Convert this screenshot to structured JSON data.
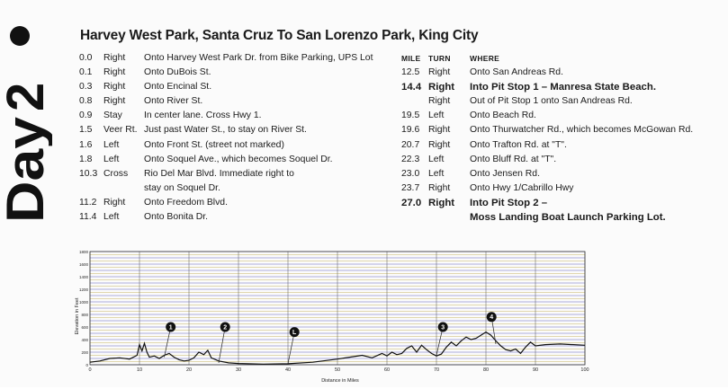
{
  "day": {
    "label": "Day",
    "number": "2"
  },
  "route_title": "Harvey West Park, Santa Cruz To San Lorenzo Park, King City",
  "headers": {
    "mile": "MILE",
    "turn": "TURN",
    "where": "WHERE"
  },
  "left_cues": [
    {
      "mile": "0.0",
      "turn": "Right",
      "where": "Onto Harvey West Park Dr. from Bike Parking, UPS Lot"
    },
    {
      "mile": "0.1",
      "turn": "Right",
      "where": "Onto DuBois St."
    },
    {
      "mile": "0.3",
      "turn": "Right",
      "where": "Onto Encinal St."
    },
    {
      "mile": "0.8",
      "turn": "Right",
      "where": "Onto River St."
    },
    {
      "mile": "0.9",
      "turn": "Stay",
      "where": "In center lane. Cross Hwy 1."
    },
    {
      "mile": "1.5",
      "turn": "Veer Rt.",
      "where": "Just past Water St., to stay on River St."
    },
    {
      "mile": "1.6",
      "turn": "Left",
      "where": "Onto Front St. (street not marked)"
    },
    {
      "mile": "1.8",
      "turn": "Left",
      "where": "Onto Soquel Ave., which becomes Soquel Dr."
    },
    {
      "mile": "10.3",
      "turn": "Cross",
      "where": "Rio Del Mar Blvd. Immediate right to"
    },
    {
      "mile": "",
      "turn": "",
      "where": "stay on Soquel Dr."
    },
    {
      "mile": "11.2",
      "turn": "Right",
      "where": "Onto Freedom Blvd."
    },
    {
      "mile": "11.4",
      "turn": "Left",
      "where": "Onto Bonita Dr."
    }
  ],
  "right_cues": [
    {
      "mile": "12.5",
      "turn": "Right",
      "where": "Onto San Andreas Rd.",
      "bold": false
    },
    {
      "mile": "14.4",
      "turn": "Right",
      "where": "Into Pit Stop 1 – Manresa State Beach.",
      "bold": true
    },
    {
      "mile": "",
      "turn": "Right",
      "where": "Out of Pit Stop 1 onto San Andreas Rd.",
      "bold": false
    },
    {
      "mile": "19.5",
      "turn": "Left",
      "where": "Onto Beach Rd.",
      "bold": false
    },
    {
      "mile": "19.6",
      "turn": "Right",
      "where": "Onto Thurwatcher Rd., which becomes McGowan Rd.",
      "bold": false
    },
    {
      "mile": "20.7",
      "turn": "Right",
      "where": "Onto Trafton Rd. at \"T\".",
      "bold": false
    },
    {
      "mile": "22.3",
      "turn": "Left",
      "where": "Onto Bluff Rd. at \"T\".",
      "bold": false
    },
    {
      "mile": "23.0",
      "turn": "Left",
      "where": "Onto Jensen Rd.",
      "bold": false
    },
    {
      "mile": "23.7",
      "turn": "Right",
      "where": "Onto Hwy 1/Cabrillo Hwy",
      "bold": false
    },
    {
      "mile": "27.0",
      "turn": "Right",
      "where": "Into Pit Stop 2 –",
      "bold": true
    },
    {
      "mile": "",
      "turn": "",
      "where": "Moss Landing Boat Launch Parking Lot.",
      "bold": true
    }
  ],
  "chart_data": {
    "type": "area",
    "xlabel": "Distance in Miles",
    "ylabel": "Elevation in Feet",
    "xlim": [
      0,
      100
    ],
    "ylim": [
      0,
      1800
    ],
    "x_ticks": [
      0,
      10,
      20,
      30,
      40,
      50,
      60,
      70,
      80,
      90,
      100
    ],
    "y_ticks": [
      0,
      200,
      400,
      600,
      800,
      1000,
      1200,
      1400,
      1600,
      1800
    ],
    "grid": true,
    "line_color": "#111111",
    "grid_colors": [
      "#3a3ab0",
      "#b7a23a"
    ],
    "series": [
      {
        "x": [
          0,
          2,
          4,
          6,
          8,
          9.5,
          10,
          10.5,
          11,
          11.5,
          12,
          13,
          14,
          15,
          16,
          17,
          18,
          19,
          20,
          21,
          22,
          23,
          23.8,
          24.5,
          26,
          28,
          30,
          35,
          40,
          45,
          50,
          55,
          57,
          59,
          60,
          61,
          62,
          63,
          64,
          65,
          66,
          67,
          68,
          69,
          70,
          71,
          72,
          73,
          74,
          75,
          76,
          77,
          78,
          79,
          80,
          81,
          82,
          83,
          84,
          85,
          86,
          87,
          88,
          89,
          90,
          92,
          95,
          100
        ],
        "y": [
          40,
          60,
          100,
          110,
          90,
          150,
          320,
          220,
          340,
          200,
          120,
          140,
          100,
          150,
          180,
          120,
          80,
          60,
          70,
          110,
          200,
          160,
          230,
          110,
          60,
          30,
          20,
          10,
          15,
          40,
          90,
          150,
          110,
          180,
          140,
          200,
          160,
          180,
          260,
          300,
          200,
          310,
          240,
          180,
          140,
          170,
          280,
          360,
          300,
          380,
          440,
          400,
          420,
          470,
          520,
          470,
          380,
          300,
          240,
          220,
          250,
          180,
          280,
          360,
          300,
          320,
          330,
          310
        ]
      }
    ],
    "markers": [
      {
        "label": "1",
        "x": 15,
        "y": 120,
        "note_y": 600
      },
      {
        "label": "2",
        "x": 26,
        "y": 30,
        "note_y": 600
      },
      {
        "label": "L",
        "x": 40,
        "y": 15,
        "note_y": 520
      },
      {
        "label": "3",
        "x": 70,
        "y": 150,
        "note_y": 600
      },
      {
        "label": "4",
        "x": 82,
        "y": 330,
        "note_y": 760
      }
    ]
  }
}
